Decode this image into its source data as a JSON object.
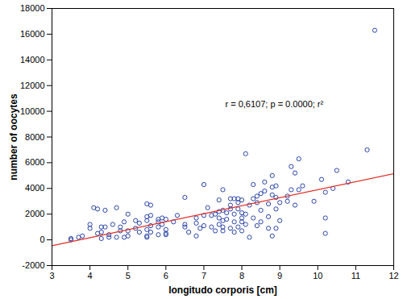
{
  "chart_data": {
    "type": "scatter",
    "x_label": "longitudo corporis [cm]",
    "y_label": "number of oocytes",
    "annotations": [
      "r = 0,6107; p = 0.0000; r²"
    ],
    "xlim": [
      3,
      12
    ],
    "xticks": [
      3,
      4,
      5,
      6,
      7,
      8,
      9,
      10,
      11,
      12
    ],
    "ylim": [
      -2000,
      18000
    ],
    "yticks": [
      -2000,
      0,
      2000,
      4000,
      6000,
      8000,
      10000,
      12000,
      14000,
      16000,
      18000
    ],
    "grid": false,
    "series": [
      {
        "type": "scatter",
        "color": "#2a45a8",
        "marker": "circle",
        "x": [
          3.5,
          3.5,
          3.7,
          3.8,
          4.0,
          4.0,
          4.1,
          4.2,
          4.2,
          4.3,
          4.3,
          4.3,
          4.4,
          4.4,
          4.5,
          4.5,
          4.6,
          4.7,
          4.7,
          4.8,
          4.8,
          4.9,
          4.9,
          5.0,
          5.0,
          5.0,
          5.2,
          5.2,
          5.3,
          5.3,
          5.5,
          5.5,
          5.5,
          5.5,
          5.5,
          5.5,
          5.6,
          5.6,
          5.6,
          5.6,
          5.8,
          5.8,
          5.8,
          5.8,
          5.9,
          5.9,
          6.0,
          6.0,
          6.0,
          6.0,
          6.2,
          6.3,
          6.5,
          6.5,
          6.5,
          6.6,
          6.8,
          6.8,
          6.8,
          6.9,
          7.0,
          7.0,
          7.0,
          7.1,
          7.2,
          7.2,
          7.3,
          7.3,
          7.4,
          7.4,
          7.4,
          7.4,
          7.5,
          7.5,
          7.5,
          7.5,
          7.5,
          7.6,
          7.6,
          7.7,
          7.7,
          7.7,
          7.7,
          7.8,
          7.8,
          7.8,
          7.8,
          7.9,
          7.9,
          7.9,
          7.9,
          8.0,
          8.0,
          8.0,
          8.0,
          8.0,
          8.1,
          8.1,
          8.1,
          8.2,
          8.2,
          8.3,
          8.3,
          8.3,
          8.4,
          8.4,
          8.4,
          8.5,
          8.5,
          8.5,
          8.6,
          8.6,
          8.7,
          8.7,
          8.7,
          8.8,
          8.8,
          8.8,
          8.8,
          8.9,
          8.9,
          8.9,
          8.9,
          9.0,
          9.0,
          9.2,
          9.2,
          9.3,
          9.3,
          9.4,
          9.4,
          9.5,
          9.5,
          9.6,
          9.9,
          10.1,
          10.2,
          10.2,
          10.2,
          10.4,
          10.5,
          10.8,
          11.3,
          11.5
        ],
        "values": [
          0,
          100,
          200,
          300,
          900,
          1200,
          2500,
          2400,
          500,
          1000,
          600,
          100,
          1000,
          2300,
          400,
          200,
          1200,
          2500,
          200,
          700,
          1000,
          1400,
          200,
          700,
          2000,
          300,
          900,
          1500,
          1300,
          600,
          1800,
          2800,
          1500,
          300,
          800,
          200,
          2700,
          1100,
          600,
          1900,
          1600,
          1400,
          1000,
          400,
          1200,
          1700,
          800,
          500,
          400,
          1600,
          1400,
          1900,
          3300,
          1000,
          1200,
          600,
          1700,
          1300,
          300,
          900,
          4300,
          1100,
          1900,
          2500,
          1000,
          1900,
          700,
          2000,
          2200,
          3100,
          1200,
          1700,
          2300,
          3900,
          1500,
          1000,
          700,
          2100,
          1600,
          3200,
          2400,
          900,
          2700,
          3200,
          1400,
          600,
          2000,
          1000,
          3200,
          2900,
          2400,
          3100,
          2100,
          1400,
          1700,
          700,
          6700,
          2000,
          1200,
          2700,
          200,
          4300,
          1700,
          3200,
          2900,
          3400,
          1100,
          2300,
          3600,
          1400,
          3800,
          4500,
          2800,
          1800,
          900,
          5000,
          4100,
          3500,
          300,
          4200,
          3300,
          2400,
          900,
          2900,
          1500,
          3000,
          3400,
          5700,
          3900,
          5200,
          2700,
          3900,
          6300,
          4200,
          3000,
          4700,
          1700,
          500,
          3700,
          4000,
          5400,
          4500,
          7000,
          16300
        ]
      },
      {
        "type": "line",
        "color": "#e0302a",
        "line_style": "solid",
        "x": [
          3,
          12
        ],
        "values": [
          -450,
          5150
        ]
      }
    ]
  }
}
